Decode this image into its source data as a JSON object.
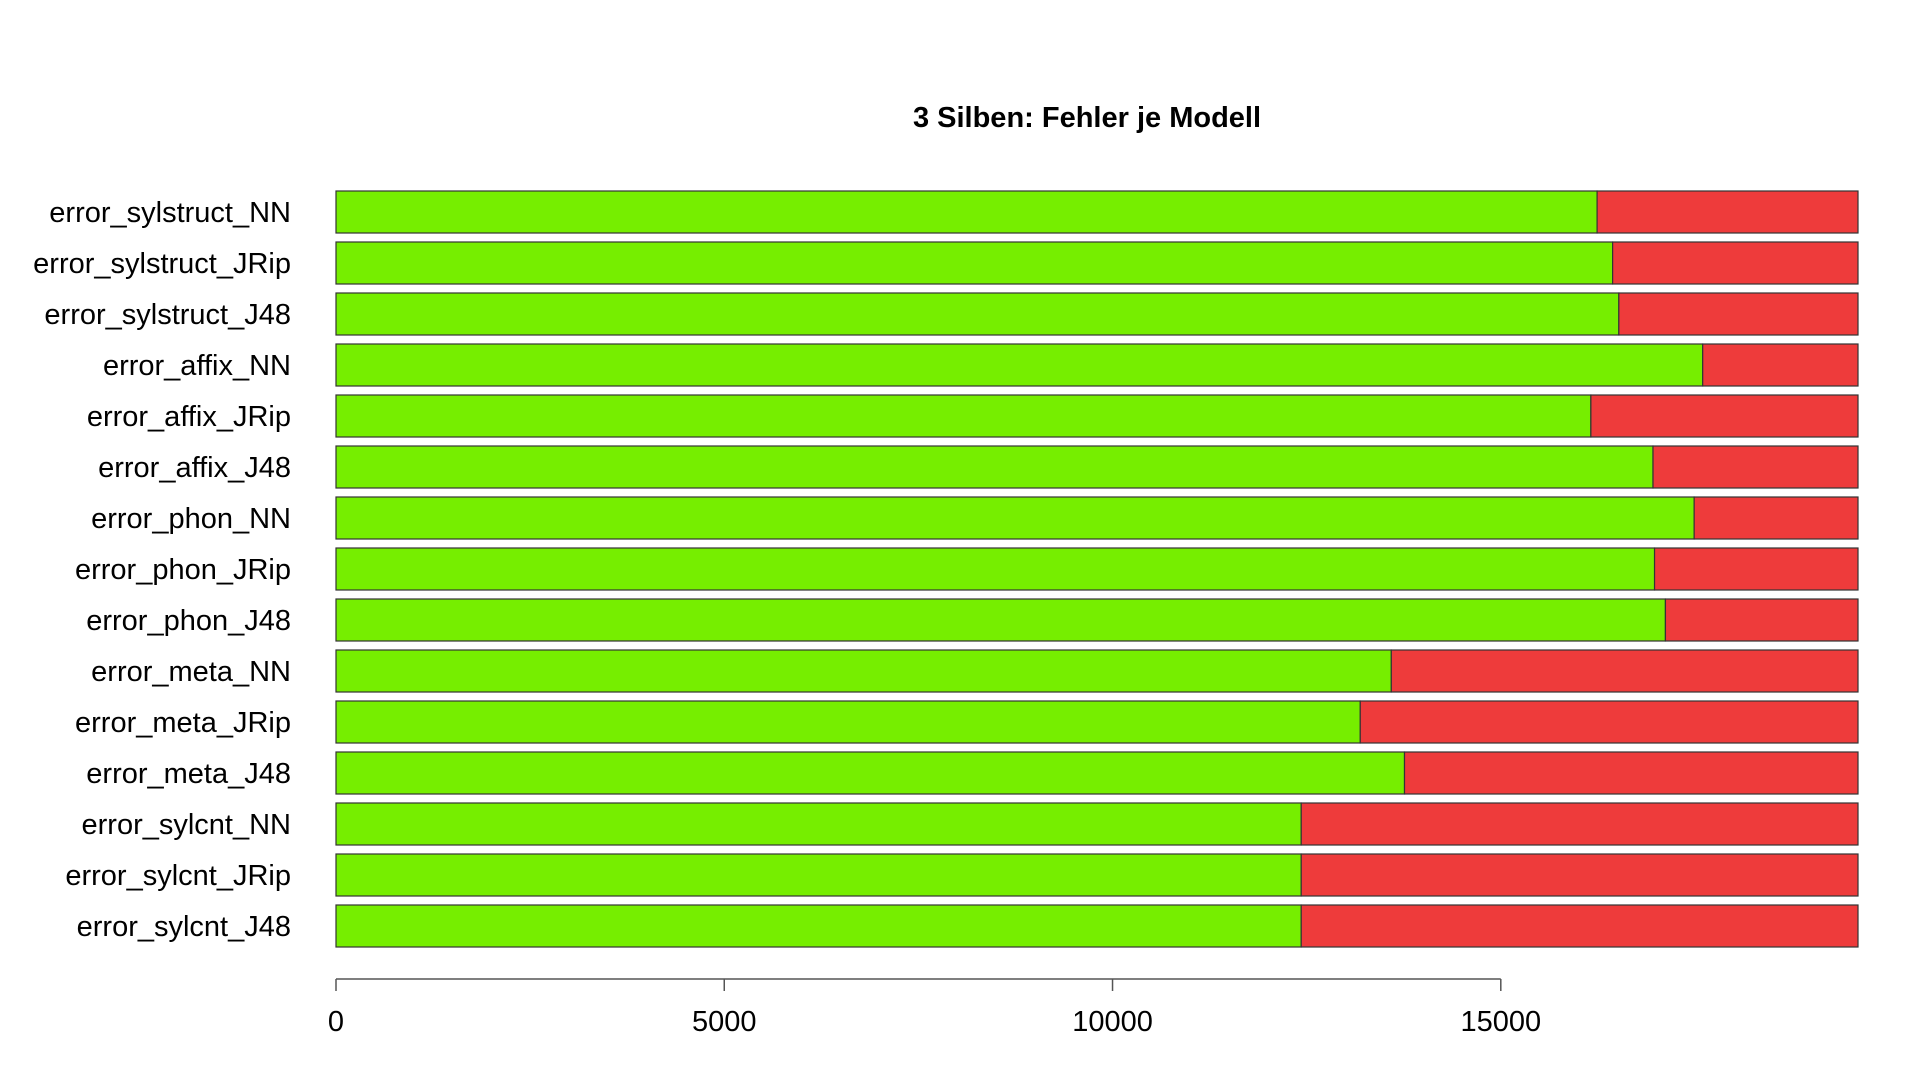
{
  "chart_data": {
    "type": "bar",
    "orientation": "horizontal",
    "stacked": true,
    "title": "3 Silben: Fehler je Modell",
    "xlabel": "",
    "ylabel": "",
    "xlim": [
      0,
      19600
    ],
    "x_ticks": [
      0,
      5000,
      10000,
      15000
    ],
    "x_tick_labels": [
      "0",
      "5000",
      "10000",
      "15000"
    ],
    "grid": false,
    "legend": "none",
    "categories": [
      "error_sylstruct_NN",
      "error_sylstruct_JRip",
      "error_sylstruct_J48",
      "error_affix_NN",
      "error_affix_JRip",
      "error_affix_J48",
      "error_phon_NN",
      "error_phon_JRip",
      "error_phon_J48",
      "error_meta_NN",
      "error_meta_JRip",
      "error_meta_J48",
      "error_sylcnt_NN",
      "error_sylcnt_JRip",
      "error_sylcnt_J48"
    ],
    "series": [
      {
        "color": "#76ee00",
        "values": [
          16240,
          16440,
          16520,
          17600,
          16160,
          16960,
          17490,
          16980,
          17120,
          13590,
          13190,
          13760,
          12430,
          12430,
          12430
        ]
      },
      {
        "color": "#ee3b3b",
        "values": [
          3360,
          3160,
          3080,
          2000,
          3440,
          2640,
          2110,
          2620,
          2480,
          6010,
          6410,
          5840,
          7170,
          7170,
          7170
        ]
      }
    ]
  }
}
